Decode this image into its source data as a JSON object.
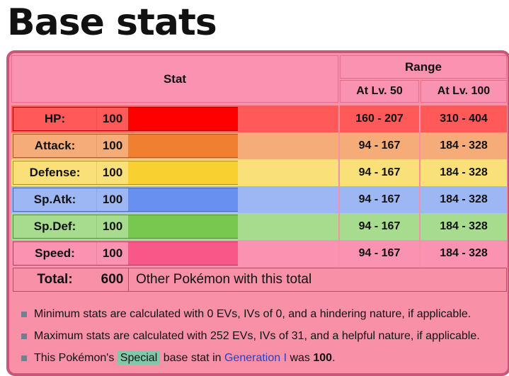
{
  "title": "Base stats",
  "header": {
    "stat": "Stat",
    "range": "Range",
    "lv50": "At Lv. 50",
    "lv100": "At Lv. 100"
  },
  "stats": [
    {
      "name": "HP:",
      "value": "100",
      "lv50": "160 - 207",
      "lv100": "310 - 404",
      "row_color": "#FF5959",
      "bar_color": "#FF0000"
    },
    {
      "name": "Attack:",
      "value": "100",
      "lv50": "94 - 167",
      "lv100": "184 - 328",
      "row_color": "#F5AC78",
      "bar_color": "#F08030"
    },
    {
      "name": "Defense:",
      "value": "100",
      "lv50": "94 - 167",
      "lv100": "184 - 328",
      "row_color": "#FAE078",
      "bar_color": "#F8D030"
    },
    {
      "name": "Sp.Atk:",
      "value": "100",
      "lv50": "94 - 167",
      "lv100": "184 - 328",
      "row_color": "#9DB7F5",
      "bar_color": "#6890F0"
    },
    {
      "name": "Sp.Def:",
      "value": "100",
      "lv50": "94 - 167",
      "lv100": "184 - 328",
      "row_color": "#A7DB8D",
      "bar_color": "#78C850"
    },
    {
      "name": "Speed:",
      "value": "100",
      "lv50": "94 - 167",
      "lv100": "184 - 328",
      "row_color": "#FA92B2",
      "bar_color": "#F85888"
    }
  ],
  "total": {
    "label": "Total:",
    "value": "600",
    "link": "Other Pokémon with this total"
  },
  "notes": {
    "min": "Minimum stats are calculated with 0 EVs, IVs of 0, and a hindering nature, if applicable.",
    "max": "Maximum stats are calculated with 252 EVs, IVs of 31, and a helpful nature, if applicable.",
    "special_pre": "This Pokémon's ",
    "special_tag": "Special",
    "special_mid": " base stat in ",
    "special_link": "Generation I",
    "special_post": " was ",
    "special_value": "100",
    "special_end": "."
  }
}
